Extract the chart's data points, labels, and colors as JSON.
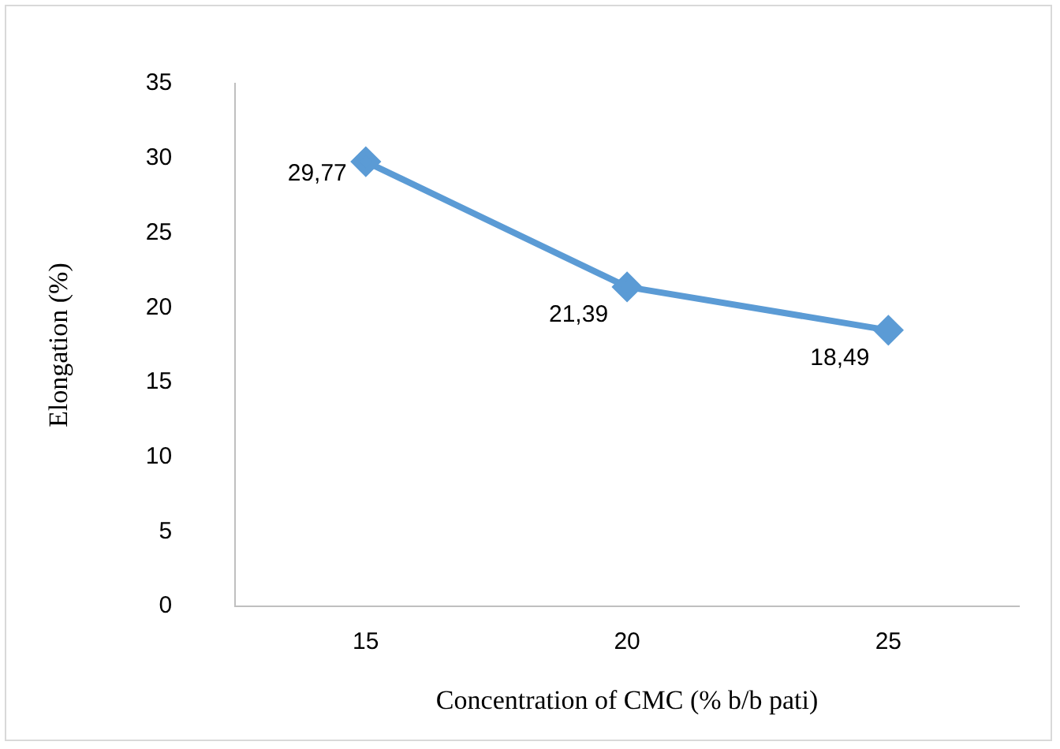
{
  "chart_data": {
    "type": "line",
    "xlabel": "Concentration of CMC (% b/b pati)",
    "ylabel": "Elongation (%)",
    "categories": [
      "15",
      "20",
      "25"
    ],
    "series": [
      {
        "color": "#5b9bd5",
        "values": [
          29.77,
          21.39,
          18.49
        ],
        "value_labels": [
          "29,77",
          "21,39",
          "18,49"
        ]
      }
    ],
    "ylim": [
      0,
      35
    ],
    "yticks": [
      0,
      5,
      10,
      15,
      20,
      25,
      30,
      35
    ],
    "grid": false,
    "legend": false,
    "marker": "diamond",
    "line_style": "solid"
  }
}
